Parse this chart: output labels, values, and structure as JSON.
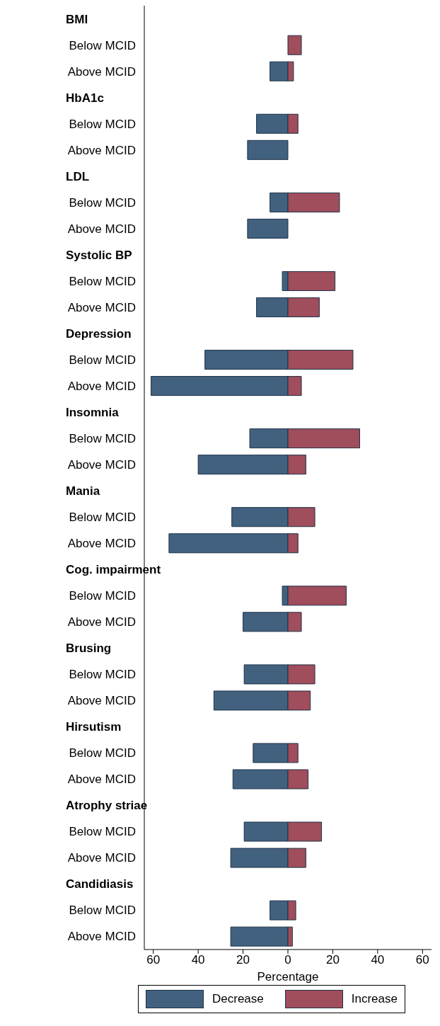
{
  "chart_data": {
    "type": "bar",
    "orientation": "horizontal",
    "stacked": true,
    "xlabel": "Percentage",
    "categories": [
      "BMI",
      "Below MCID",
      "Above MCID",
      "HbA1c",
      "Below MCID",
      "Above MCID",
      "LDL",
      "Below MCID",
      "Above MCID",
      "Systolic BP",
      "Below MCID",
      "Above MCID",
      "Depression",
      "Below MCID",
      "Above MCID",
      "Insomnia",
      "Below MCID",
      "Above MCID",
      "Mania",
      "Below MCID",
      "Above MCID",
      "Cog. impairment",
      "Below MCID",
      "Above MCID",
      "Brusing",
      "Below MCID",
      "Above MCID",
      "Hirsutism",
      "Below MCID",
      "Above MCID",
      "Atrophy striae",
      "Below MCID",
      "Above MCID",
      "Candidiasis",
      "Below MCID",
      "Above MCID"
    ],
    "series": [
      {
        "name": "Decrease",
        "color": "#41617f",
        "values": [
          null,
          null,
          -8,
          null,
          -14,
          -18,
          null,
          -8,
          -18,
          null,
          -2.5,
          -14,
          null,
          -37,
          -61,
          null,
          -17,
          -40,
          null,
          -25,
          -53,
          null,
          -2.5,
          -20,
          null,
          -19.5,
          -33,
          null,
          -15.5,
          -24.5,
          null,
          -19.5,
          -25.5,
          null,
          -8,
          -25.5
        ]
      },
      {
        "name": "Increase",
        "color": "#a04d5c",
        "values": [
          null,
          6,
          2.5,
          null,
          4.5,
          null,
          null,
          23,
          null,
          null,
          21,
          14,
          null,
          29,
          6,
          null,
          32,
          8,
          null,
          12,
          4.5,
          null,
          26,
          6,
          null,
          12,
          10,
          null,
          4.5,
          9,
          null,
          15,
          8,
          null,
          3.5,
          2
        ]
      }
    ],
    "xlim": [
      -64,
      64
    ],
    "xticks": [
      {
        "value": -60,
        "label": "60"
      },
      {
        "value": -40,
        "label": "40"
      },
      {
        "value": -20,
        "label": "20"
      },
      0,
      20,
      40,
      60
    ],
    "grid": false,
    "legend": "bottom"
  }
}
